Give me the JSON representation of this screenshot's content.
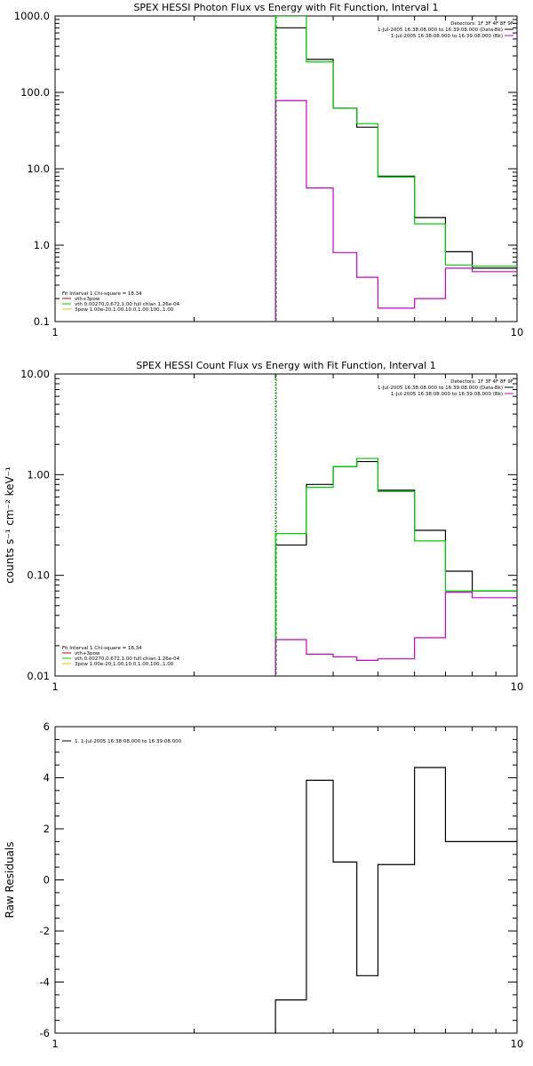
{
  "chart_data": [
    {
      "type": "line",
      "title": "SPEX HESSI Photon Flux vs Energy with Fit Function, Interval 1",
      "xlabel": "",
      "ylabel": "",
      "xscale": "log",
      "yscale": "log",
      "xlim": [
        1,
        10
      ],
      "ylim": [
        0.1,
        1000
      ],
      "x_ticks": [
        "1",
        "10"
      ],
      "y_ticks": [
        "0.1",
        "1.0",
        "10.0",
        "100.0",
        "1000.0"
      ],
      "threshold_x": 3.0,
      "step_edges": [
        3.0,
        3.5,
        4.0,
        4.5,
        5.0,
        6.0,
        7.0,
        8.0,
        9.0,
        10.0
      ],
      "series": [
        {
          "color": "#000000",
          "values": [
            700,
            270,
            62,
            35,
            8,
            2.3,
            0.82,
            0.5,
            0.5
          ]
        },
        {
          "color": "#00cc00",
          "values": [
            1000,
            250,
            62,
            39,
            7.8,
            1.9,
            0.55,
            0.53,
            0.53
          ]
        },
        {
          "color": "#cc00cc",
          "values": [
            78,
            5.6,
            0.8,
            0.38,
            0.15,
            0.2,
            0.5,
            0.45,
            0.45
          ]
        }
      ],
      "legend_topright": {
        "header": "Detectors: 1F 3F 4F 8F 9F",
        "lines": [
          {
            "text": "1-Jul-2005 16:38:08.000 to 16:39:08.000 (Data-Bk)",
            "color": "#000000"
          },
          {
            "text": "1-Jul-2005 16:38:08.000 to 16:39:08.000 (Bk)",
            "color": "#cc00cc"
          }
        ]
      },
      "legend_bottomleft": {
        "header": "Fit Interval 1    Chi-square = 18.34",
        "lines": [
          {
            "text": "vth+3pow",
            "color": "#cc0000"
          },
          {
            "text": "vth 0.00270,0.672,1.00  full chian 1.26e-04",
            "color": "#00cc00"
          },
          {
            "text": "3pow 1.00e-20,1.00,10.0,1.00,100.,1.00",
            "color": "#cccc00"
          }
        ]
      }
    },
    {
      "type": "line",
      "title": "SPEX HESSI Count Flux vs Energy with Fit Function, Interval 1",
      "xlabel": "",
      "ylabel": "counts s⁻¹ cm⁻² keV⁻¹",
      "xscale": "log",
      "yscale": "log",
      "xlim": [
        1,
        10
      ],
      "ylim": [
        0.01,
        10
      ],
      "x_ticks": [
        "1",
        "10"
      ],
      "y_ticks": [
        "0.01",
        "0.10",
        "1.00",
        "10.00"
      ],
      "threshold_x": 3.0,
      "step_edges": [
        3.0,
        3.5,
        4.0,
        4.5,
        5.0,
        6.0,
        7.0,
        8.0,
        9.0,
        10.0
      ],
      "series": [
        {
          "color": "#000000",
          "values": [
            0.2,
            0.8,
            1.2,
            1.35,
            0.7,
            0.28,
            0.11,
            0.07,
            0.07
          ]
        },
        {
          "color": "#00cc00",
          "values": [
            0.26,
            0.75,
            1.2,
            1.45,
            0.68,
            0.22,
            0.07,
            0.07,
            0.07
          ]
        },
        {
          "color": "#cc00cc",
          "values": [
            0.023,
            0.0165,
            0.0155,
            0.0143,
            0.0148,
            0.024,
            0.068,
            0.06,
            0.06
          ]
        }
      ],
      "legend_topright": {
        "header": "Detectors: 1F 3F 4F 8F 9F",
        "lines": [
          {
            "text": "1-Jul-2005 16:38:08.000 to 16:39:08.000 (Data-Bk)",
            "color": "#000000"
          },
          {
            "text": "1-Jul-2005 16:38:08.000 to 16:39:08.000 (Bk)",
            "color": "#cc00cc"
          }
        ]
      },
      "legend_bottomleft": {
        "header": "Fit Interval 1    Chi-square = 18.34",
        "lines": [
          {
            "text": "vth+3pow",
            "color": "#cc0000"
          },
          {
            "text": "vth 0.00270,0.672,1.00  full chian 1.26e-04",
            "color": "#00cc00"
          },
          {
            "text": "3pow 1.00e-20,1.00,10.0,1.00,100.,1.00",
            "color": "#cccc00"
          }
        ]
      }
    },
    {
      "type": "line",
      "title": "",
      "xlabel": "",
      "ylabel": "Raw Residuals",
      "xscale": "log",
      "yscale": "linear",
      "xlim": [
        1,
        10
      ],
      "ylim": [
        -6,
        6
      ],
      "x_ticks": [
        "1",
        "10"
      ],
      "y_ticks": [
        "-6",
        "-4",
        "-2",
        "0",
        "2",
        "4",
        "6"
      ],
      "step_edges": [
        3.0,
        3.5,
        4.0,
        4.5,
        5.0,
        6.0,
        7.0,
        8.0,
        9.0,
        10.0
      ],
      "series": [
        {
          "color": "#000000",
          "values": [
            -4.7,
            3.9,
            0.7,
            -3.75,
            0.6,
            4.4,
            1.5,
            1.5,
            1.5
          ]
        }
      ],
      "legend_topleft": {
        "lines": [
          {
            "text": "1.  1-Jul-2005 16:38:08.000 to 16:39:08.000",
            "color": "#000000"
          }
        ]
      }
    }
  ]
}
